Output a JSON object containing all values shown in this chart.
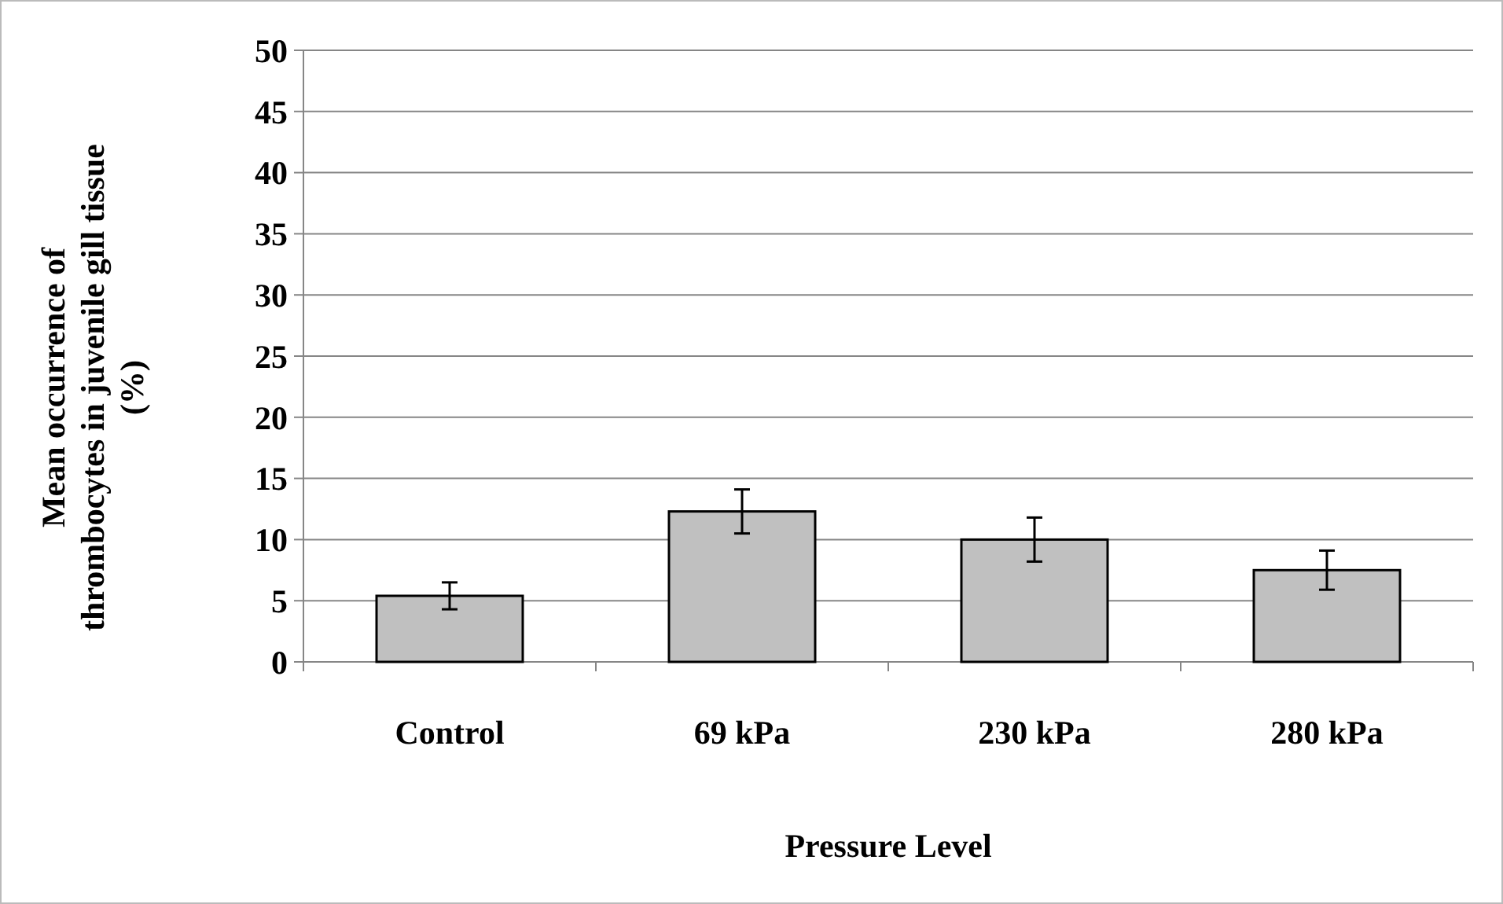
{
  "chart_data": {
    "type": "bar",
    "xlabel": "Pressure Level",
    "ylabel": "Mean occurrence of thrombocytes in juvenile gill tissue (%)",
    "categories": [
      "Control",
      "69 kPa",
      "230 kPa",
      "280 kPa"
    ],
    "values": [
      5.4,
      12.3,
      10.0,
      7.5
    ],
    "errors": [
      1.1,
      1.8,
      1.8,
      1.6
    ],
    "color": "#c0c0c0",
    "ylim": [
      0,
      50
    ],
    "yticks": [
      0,
      5,
      10,
      15,
      20,
      25,
      30,
      35,
      40,
      45,
      50
    ],
    "grid": "y"
  }
}
